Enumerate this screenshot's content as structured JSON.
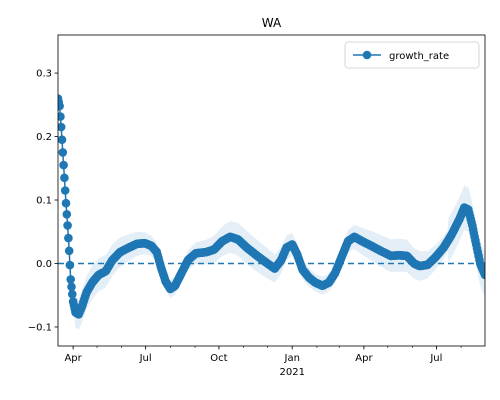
{
  "chart_data": {
    "type": "line",
    "title": "WA",
    "xlabel": "",
    "ylabel": "",
    "x_range": [
      "2020-03-13",
      "2021-08-31"
    ],
    "ylim": [
      -0.13,
      0.36
    ],
    "grid": false,
    "legend": {
      "placement": "top-right",
      "entries": [
        "growth_rate"
      ]
    },
    "x_ticks": [
      {
        "date": "2020-04-01",
        "label": "Apr"
      },
      {
        "date": "2020-07-01",
        "label": "Jul"
      },
      {
        "date": "2020-10-01",
        "label": "Oct"
      },
      {
        "date": "2021-01-01",
        "label": "Jan"
      },
      {
        "date": "2021-04-01",
        "label": "Apr"
      },
      {
        "date": "2021-07-01",
        "label": "Jul"
      }
    ],
    "x_year_label": "2021",
    "y_ticks": [
      -0.1,
      0.0,
      0.1,
      0.2,
      0.3
    ],
    "y_tick_labels": [
      "−0.1",
      "0.0",
      "0.1",
      "0.2",
      "0.3"
    ],
    "reference_line": {
      "y": 0.0,
      "style": "dashed"
    },
    "series": [
      {
        "name": "growth_rate",
        "color": "#1f77b4",
        "band_color": "#aecde8",
        "points": [
          [
            "2020-03-13",
            0.26
          ],
          [
            "2020-03-15",
            0.248
          ],
          [
            "2020-03-17",
            0.215
          ],
          [
            "2020-03-19",
            0.175
          ],
          [
            "2020-03-21",
            0.135
          ],
          [
            "2020-03-23",
            0.095
          ],
          [
            "2020-03-25",
            0.06
          ],
          [
            "2020-03-27",
            0.02
          ],
          [
            "2020-03-29",
            -0.025
          ],
          [
            "2020-04-01",
            -0.06
          ],
          [
            "2020-04-04",
            -0.077
          ],
          [
            "2020-04-08",
            -0.08
          ],
          [
            "2020-04-12",
            -0.068
          ],
          [
            "2020-04-18",
            -0.045
          ],
          [
            "2020-04-25",
            -0.03
          ],
          [
            "2020-05-03",
            -0.018
          ],
          [
            "2020-05-12",
            -0.012
          ],
          [
            "2020-05-20",
            0.005
          ],
          [
            "2020-05-30",
            0.018
          ],
          [
            "2020-06-10",
            0.025
          ],
          [
            "2020-06-20",
            0.031
          ],
          [
            "2020-06-30",
            0.032
          ],
          [
            "2020-07-08",
            0.028
          ],
          [
            "2020-07-15",
            0.018
          ],
          [
            "2020-07-20",
            -0.005
          ],
          [
            "2020-07-26",
            -0.028
          ],
          [
            "2020-08-01",
            -0.04
          ],
          [
            "2020-08-07",
            -0.035
          ],
          [
            "2020-08-15",
            -0.015
          ],
          [
            "2020-08-23",
            0.005
          ],
          [
            "2020-09-02",
            0.016
          ],
          [
            "2020-09-15",
            0.018
          ],
          [
            "2020-09-25",
            0.022
          ],
          [
            "2020-10-05",
            0.035
          ],
          [
            "2020-10-15",
            0.042
          ],
          [
            "2020-10-25",
            0.038
          ],
          [
            "2020-11-05",
            0.025
          ],
          [
            "2020-11-18",
            0.012
          ],
          [
            "2020-12-01",
            0.0
          ],
          [
            "2020-12-10",
            -0.008
          ],
          [
            "2020-12-18",
            0.005
          ],
          [
            "2020-12-25",
            0.025
          ],
          [
            "2021-01-01",
            0.03
          ],
          [
            "2021-01-07",
            0.015
          ],
          [
            "2021-01-14",
            -0.01
          ],
          [
            "2021-01-22",
            -0.022
          ],
          [
            "2021-01-30",
            -0.03
          ],
          [
            "2021-02-08",
            -0.035
          ],
          [
            "2021-02-16",
            -0.03
          ],
          [
            "2021-02-24",
            -0.015
          ],
          [
            "2021-03-04",
            0.01
          ],
          [
            "2021-03-12",
            0.035
          ],
          [
            "2021-03-20",
            0.042
          ],
          [
            "2021-03-30",
            0.035
          ],
          [
            "2021-04-10",
            0.028
          ],
          [
            "2021-04-22",
            0.02
          ],
          [
            "2021-05-05",
            0.012
          ],
          [
            "2021-05-15",
            0.013
          ],
          [
            "2021-05-25",
            0.012
          ],
          [
            "2021-06-03",
            0.0
          ],
          [
            "2021-06-10",
            -0.004
          ],
          [
            "2021-06-20",
            -0.002
          ],
          [
            "2021-06-30",
            0.01
          ],
          [
            "2021-07-10",
            0.025
          ],
          [
            "2021-07-20",
            0.045
          ],
          [
            "2021-07-30",
            0.07
          ],
          [
            "2021-08-05",
            0.088
          ],
          [
            "2021-08-10",
            0.085
          ],
          [
            "2021-08-15",
            0.06
          ],
          [
            "2021-08-20",
            0.03
          ],
          [
            "2021-08-25",
            0.0
          ],
          [
            "2021-08-31",
            -0.018
          ]
        ]
      }
    ]
  }
}
